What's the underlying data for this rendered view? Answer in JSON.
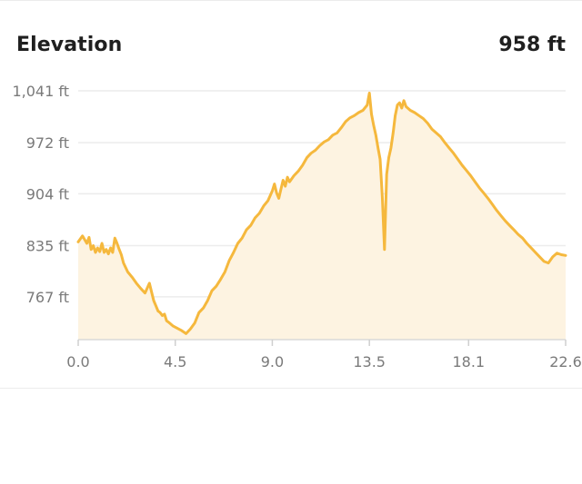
{
  "header": {
    "title": "Elevation",
    "current_value": "958 ft"
  },
  "colors": {
    "line": "#f5b83d",
    "fill": "#fdf3e1",
    "grid": "#ececec",
    "axis_text": "#7a7a7a"
  },
  "chart_data": {
    "type": "area",
    "title": "Elevation",
    "xlabel": "",
    "ylabel": "",
    "xlim": [
      0,
      22.6
    ],
    "ylim": [
      710,
      1041
    ],
    "grid": true,
    "y_ticks": [
      1041,
      972,
      904,
      835,
      767
    ],
    "y_tick_labels": [
      "1,041 ft",
      "972 ft",
      "904 ft",
      "835 ft",
      "767 ft"
    ],
    "x_ticks": [
      0.0,
      4.5,
      9.0,
      13.5,
      18.1,
      22.6
    ],
    "x_tick_labels": [
      "0.0",
      "4.5",
      "9.0",
      "13.5",
      "18.1",
      "22.6"
    ],
    "series": [
      {
        "x": [
          0.0,
          0.2,
          0.4,
          0.5,
          0.6,
          0.7,
          0.8,
          0.9,
          1.0,
          1.1,
          1.2,
          1.3,
          1.4,
          1.5,
          1.6,
          1.7,
          1.8,
          1.9,
          2.0,
          2.1,
          2.3,
          2.5,
          2.7,
          2.9,
          3.1,
          3.3,
          3.5,
          3.6,
          3.7,
          3.8,
          3.9,
          4.0,
          4.1,
          4.2,
          4.4,
          4.6,
          4.8,
          5.0,
          5.2,
          5.4,
          5.6,
          5.8,
          6.0,
          6.2,
          6.4,
          6.6,
          6.8,
          7.0,
          7.2,
          7.4,
          7.6,
          7.8,
          8.0,
          8.2,
          8.4,
          8.6,
          8.8,
          9.0,
          9.1,
          9.2,
          9.3,
          9.4,
          9.5,
          9.6,
          9.7,
          9.8,
          10.0,
          10.2,
          10.4,
          10.6,
          10.8,
          11.0,
          11.2,
          11.4,
          11.6,
          11.8,
          12.0,
          12.2,
          12.4,
          12.6,
          12.8,
          13.0,
          13.2,
          13.4,
          13.5,
          13.6,
          13.7,
          13.8,
          13.9,
          14.0,
          14.1,
          14.2,
          14.3,
          14.4,
          14.5,
          14.6,
          14.7,
          14.8,
          14.9,
          15.0,
          15.1,
          15.2,
          15.4,
          15.6,
          15.8,
          16.0,
          16.2,
          16.4,
          16.6,
          16.8,
          17.0,
          17.2,
          17.4,
          17.6,
          17.8,
          18.0,
          18.2,
          18.4,
          18.6,
          18.8,
          19.0,
          19.2,
          19.4,
          19.6,
          19.8,
          20.0,
          20.2,
          20.4,
          20.6,
          20.8,
          21.0,
          21.2,
          21.4,
          21.6,
          21.8,
          22.0,
          22.2,
          22.4,
          22.6
        ],
        "y": [
          840,
          848,
          838,
          846,
          830,
          835,
          826,
          832,
          827,
          838,
          826,
          830,
          824,
          832,
          826,
          845,
          838,
          830,
          823,
          812,
          800,
          793,
          785,
          778,
          772,
          785,
          762,
          755,
          748,
          746,
          742,
          744,
          735,
          733,
          728,
          725,
          722,
          718,
          724,
          732,
          746,
          752,
          762,
          775,
          781,
          790,
          800,
          815,
          826,
          838,
          845,
          856,
          862,
          872,
          878,
          888,
          895,
          908,
          917,
          905,
          898,
          910,
          922,
          914,
          926,
          920,
          928,
          934,
          942,
          952,
          958,
          962,
          968,
          973,
          976,
          982,
          985,
          992,
          1000,
          1005,
          1008,
          1012,
          1015,
          1022,
          1038,
          1010,
          995,
          982,
          965,
          950,
          900,
          830,
          930,
          952,
          965,
          985,
          1008,
          1022,
          1025,
          1018,
          1028,
          1020,
          1015,
          1012,
          1008,
          1004,
          998,
          990,
          985,
          980,
          972,
          965,
          958,
          950,
          942,
          935,
          928,
          920,
          912,
          905,
          898,
          890,
          882,
          875,
          868,
          862,
          856,
          850,
          845,
          838,
          832,
          826,
          820,
          814,
          812,
          820,
          825,
          823,
          822
        ]
      }
    ]
  }
}
